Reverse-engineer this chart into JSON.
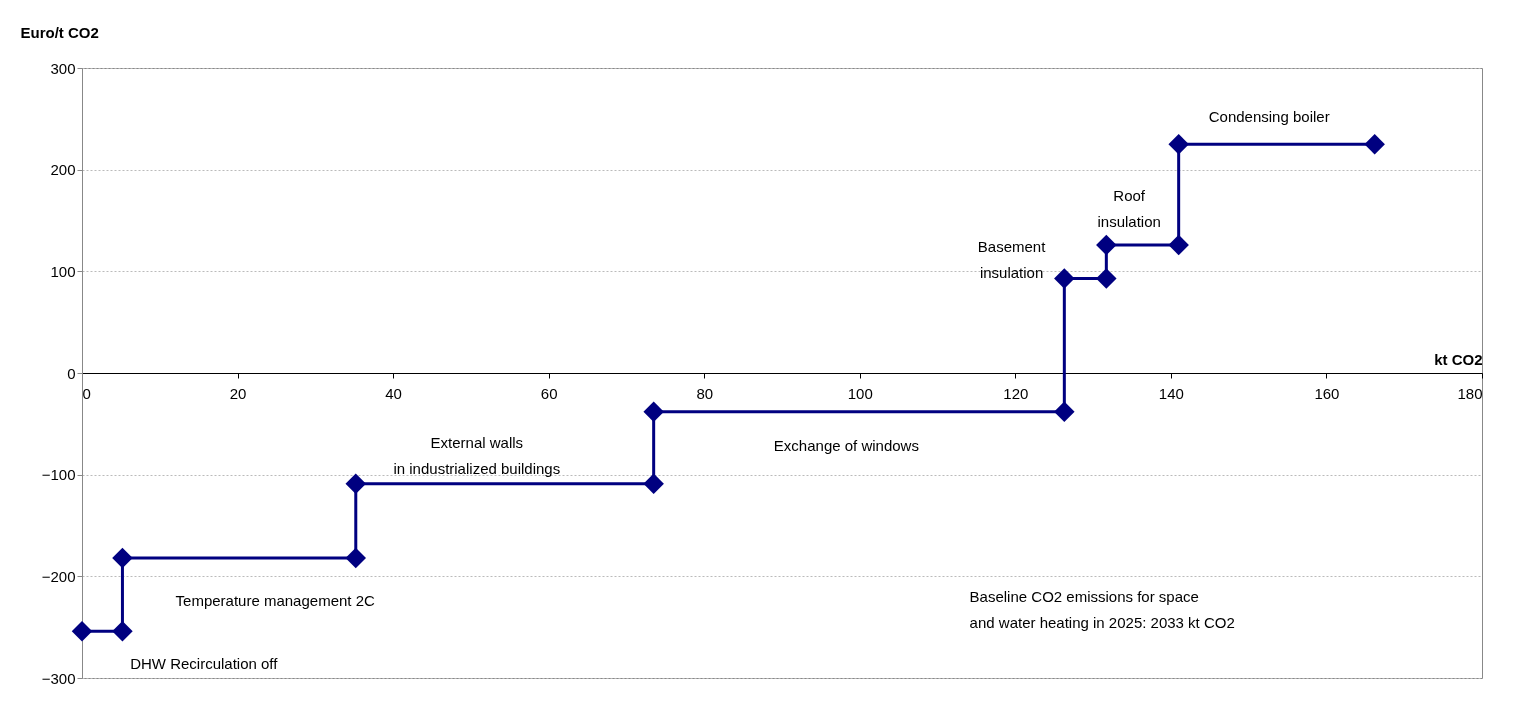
{
  "chart_data": {
    "type": "line",
    "xlabel": "kt CO2",
    "ylabel": "Euro/t CO2",
    "series": [
      {
        "color": "#000080",
        "x": [
          0,
          5.2,
          5.2,
          35.2,
          35.2,
          73.5,
          73.5,
          126.3,
          126.3,
          131.7,
          131.7,
          141,
          141,
          166.2
        ],
        "values": [
          -254,
          -254,
          -182,
          -182,
          -109,
          -109,
          -38,
          -38,
          93,
          93,
          126,
          126,
          225,
          225
        ]
      }
    ],
    "xlim": [
      0,
      180
    ],
    "xticks": [
      0,
      20,
      40,
      60,
      80,
      100,
      120,
      140,
      160,
      180
    ],
    "ylim": [
      -300,
      300
    ],
    "yticks": [
      -300,
      -200,
      -100,
      0,
      100,
      200,
      300
    ],
    "grid": "y",
    "marker": "diamond",
    "line_style": "solid",
    "annotations": [
      "Condensing boiler",
      "Roof\ninsulation",
      "Basement\ninsulation",
      "External walls\nin industrialized buildings",
      "Exchange of windows",
      "Temperature management 2C",
      "DHW Recirculation off",
      "Baseline CO2 emissions for space\nand water heating  in 2025: 2033 kt CO2"
    ]
  }
}
